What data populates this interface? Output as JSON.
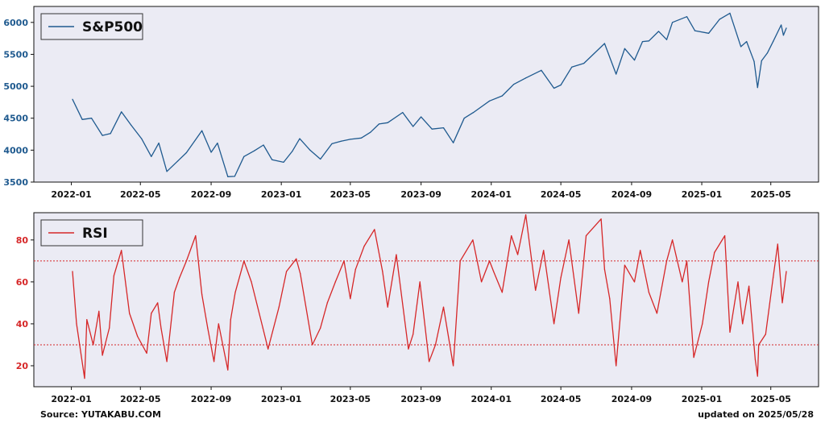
{
  "charts": [
    {
      "type": "line",
      "legend": "S&P500",
      "color": "#1f5a8f",
      "ylim": [
        3500,
        6250
      ],
      "yticks": [
        3500,
        4000,
        4500,
        5000,
        5500,
        6000
      ],
      "hlines": [],
      "x_start": "2022-01-03",
      "x_end": "2025-05-28"
    },
    {
      "type": "line",
      "legend": "RSI",
      "color": "#d62728",
      "ylim": [
        10,
        93
      ],
      "yticks": [
        20,
        40,
        60,
        80
      ],
      "hlines": [
        70,
        30
      ],
      "x_start": "2022-01-03",
      "x_end": "2025-05-28"
    }
  ],
  "xticks": [
    "2022-01",
    "2022-05",
    "2022-09",
    "2023-01",
    "2023-05",
    "2023-09",
    "2024-01",
    "2024-05",
    "2024-09",
    "2025-01",
    "2025-05"
  ],
  "chart_data": [
    {
      "type": "line",
      "series": [
        {
          "name": "S&P500",
          "x": [
            "2022-01-03",
            "2022-01-20",
            "2022-02-05",
            "2022-02-24",
            "2022-03-10",
            "2022-03-29",
            "2022-04-15",
            "2022-05-03",
            "2022-05-20",
            "2022-06-02",
            "2022-06-16",
            "2022-07-05",
            "2022-07-20",
            "2022-08-16",
            "2022-09-01",
            "2022-09-12",
            "2022-09-30",
            "2022-10-12",
            "2022-10-28",
            "2022-11-15",
            "2022-12-01",
            "2022-12-16",
            "2023-01-05",
            "2023-01-20",
            "2023-02-02",
            "2023-02-20",
            "2023-03-10",
            "2023-03-30",
            "2023-04-15",
            "2023-05-01",
            "2023-05-20",
            "2023-06-05",
            "2023-06-20",
            "2023-07-05",
            "2023-07-31",
            "2023-08-18",
            "2023-09-01",
            "2023-09-20",
            "2023-10-10",
            "2023-10-27",
            "2023-11-15",
            "2023-12-01",
            "2023-12-29",
            "2024-01-20",
            "2024-02-09",
            "2024-03-01",
            "2024-03-28",
            "2024-04-19",
            "2024-05-01",
            "2024-05-20",
            "2024-06-10",
            "2024-07-16",
            "2024-08-05",
            "2024-08-20",
            "2024-09-06",
            "2024-09-20",
            "2024-10-01",
            "2024-10-18",
            "2024-11-01",
            "2024-11-11",
            "2024-12-06",
            "2024-12-20",
            "2025-01-13",
            "2025-02-01",
            "2025-02-19",
            "2025-03-10",
            "2025-03-20",
            "2025-04-02",
            "2025-04-08",
            "2025-04-15",
            "2025-04-25",
            "2025-05-05",
            "2025-05-19",
            "2025-05-23",
            "2025-05-28"
          ],
          "values": [
            4796,
            4480,
            4500,
            4230,
            4260,
            4600,
            4390,
            4180,
            3900,
            4110,
            3666,
            3830,
            3960,
            4305,
            3967,
            4110,
            3585,
            3590,
            3900,
            3990,
            4080,
            3850,
            3810,
            3980,
            4180,
            4000,
            3860,
            4100,
            4140,
            4170,
            4190,
            4280,
            4410,
            4430,
            4590,
            4370,
            4520,
            4330,
            4350,
            4115,
            4500,
            4590,
            4770,
            4850,
            5030,
            5130,
            5250,
            4970,
            5020,
            5300,
            5360,
            5670,
            5190,
            5590,
            5410,
            5700,
            5710,
            5860,
            5730,
            6000,
            6090,
            5870,
            5830,
            6050,
            6144,
            5620,
            5700,
            5390,
            4980,
            5400,
            5520,
            5700,
            5960,
            5800,
            5911
          ]
        }
      ],
      "xlabel": "",
      "ylabel": "",
      "ylim": [
        3500,
        6250
      ],
      "legend": "top-left",
      "grid": false
    },
    {
      "type": "line",
      "series": [
        {
          "name": "RSI",
          "x": [
            "2022-01-03",
            "2022-01-10",
            "2022-01-24",
            "2022-01-28",
            "2022-02-08",
            "2022-02-18",
            "2022-02-24",
            "2022-03-08",
            "2022-03-16",
            "2022-03-29",
            "2022-04-12",
            "2022-04-26",
            "2022-05-12",
            "2022-05-20",
            "2022-05-31",
            "2022-06-06",
            "2022-06-16",
            "2022-06-29",
            "2022-07-08",
            "2022-07-20",
            "2022-08-05",
            "2022-08-16",
            "2022-08-26",
            "2022-09-06",
            "2022-09-14",
            "2022-09-30",
            "2022-10-05",
            "2022-10-13",
            "2022-10-28",
            "2022-11-10",
            "2022-11-30",
            "2022-12-09",
            "2022-12-28",
            "2023-01-10",
            "2023-01-27",
            "2023-02-03",
            "2023-02-24",
            "2023-03-10",
            "2023-03-22",
            "2023-04-05",
            "2023-04-20",
            "2023-05-01",
            "2023-05-10",
            "2023-05-25",
            "2023-06-12",
            "2023-06-26",
            "2023-07-05",
            "2023-07-20",
            "2023-08-10",
            "2023-08-18",
            "2023-08-30",
            "2023-09-15",
            "2023-09-26",
            "2023-10-10",
            "2023-10-27",
            "2023-11-08",
            "2023-11-30",
            "2023-12-15",
            "2023-12-29",
            "2024-01-05",
            "2024-01-20",
            "2024-02-05",
            "2024-02-16",
            "2024-03-01",
            "2024-03-18",
            "2024-04-01",
            "2024-04-19",
            "2024-05-01",
            "2024-05-15",
            "2024-06-01",
            "2024-06-14",
            "2024-07-10",
            "2024-07-16",
            "2024-07-25",
            "2024-08-05",
            "2024-08-20",
            "2024-09-06",
            "2024-09-16",
            "2024-10-01",
            "2024-10-15",
            "2024-11-01",
            "2024-11-11",
            "2024-11-28",
            "2024-12-06",
            "2024-12-18",
            "2025-01-02",
            "2025-01-13",
            "2025-01-23",
            "2025-02-10",
            "2025-02-19",
            "2025-03-05",
            "2025-03-13",
            "2025-03-24",
            "2025-04-04",
            "2025-04-08",
            "2025-04-10",
            "2025-04-22",
            "2025-05-05",
            "2025-05-13",
            "2025-05-21",
            "2025-05-28"
          ],
          "values": [
            65,
            40,
            14,
            42,
            30,
            46,
            25,
            38,
            63,
            75,
            45,
            34,
            26,
            45,
            50,
            38,
            22,
            55,
            62,
            70,
            82,
            54,
            38,
            22,
            40,
            18,
            42,
            55,
            70,
            60,
            38,
            28,
            48,
            65,
            71,
            64,
            30,
            38,
            50,
            60,
            70,
            52,
            66,
            77,
            85,
            65,
            48,
            73,
            28,
            35,
            60,
            22,
            30,
            48,
            20,
            70,
            80,
            60,
            70,
            65,
            55,
            82,
            73,
            92,
            56,
            75,
            40,
            62,
            80,
            45,
            82,
            90,
            66,
            52,
            20,
            68,
            60,
            75,
            55,
            45,
            70,
            80,
            60,
            70,
            24,
            40,
            60,
            74,
            82,
            36,
            60,
            40,
            58,
            23,
            15,
            30,
            35,
            62,
            78,
            50,
            65
          ],
          "levels": [
            70,
            30
          ]
        }
      ],
      "xlabel": "",
      "ylabel": "",
      "ylim": [
        10,
        93
      ],
      "legend": "top-left",
      "grid": false
    }
  ],
  "footer": {
    "source": "Source: YUTAKABU.COM",
    "updated": "updated on 2025/05/28"
  }
}
